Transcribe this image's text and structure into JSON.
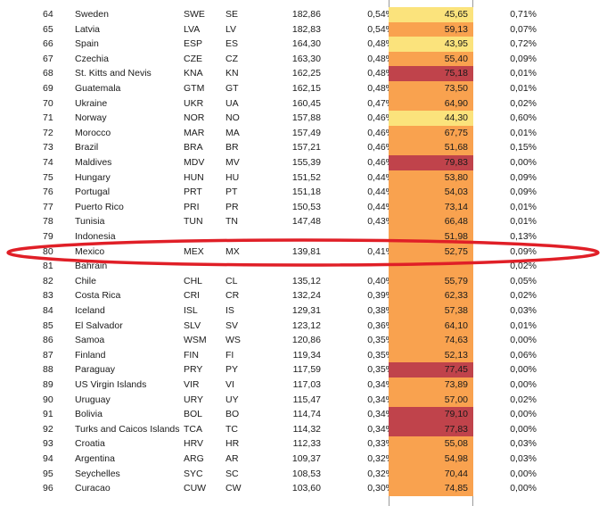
{
  "colors": {
    "yellow": "#fbe37c",
    "orange": "#f9a24f",
    "amber": "#f3914a",
    "red": "#c0434b",
    "ring": "#e01f27"
  },
  "rows": [
    {
      "rank": "64",
      "country": "Sweden",
      "iso3": "SWE",
      "iso2": "SE",
      "value": "182,86",
      "share": "0,54%",
      "score": "45,65",
      "pct": "0,71%",
      "fill": "yellow"
    },
    {
      "rank": "65",
      "country": "Latvia",
      "iso3": "LVA",
      "iso2": "LV",
      "value": "182,83",
      "share": "0,54%",
      "score": "59,13",
      "pct": "0,07%",
      "fill": "orange"
    },
    {
      "rank": "66",
      "country": "Spain",
      "iso3": "ESP",
      "iso2": "ES",
      "value": "164,30",
      "share": "0,48%",
      "score": "43,95",
      "pct": "0,72%",
      "fill": "yellow"
    },
    {
      "rank": "67",
      "country": "Czechia",
      "iso3": "CZE",
      "iso2": "CZ",
      "value": "163,30",
      "share": "0,48%",
      "score": "55,40",
      "pct": "0,09%",
      "fill": "orange"
    },
    {
      "rank": "68",
      "country": "St. Kitts and Nevis",
      "iso3": "KNA",
      "iso2": "KN",
      "value": "162,25",
      "share": "0,48%",
      "score": "75,18",
      "pct": "0,01%",
      "fill": "red"
    },
    {
      "rank": "69",
      "country": "Guatemala",
      "iso3": "GTM",
      "iso2": "GT",
      "value": "162,15",
      "share": "0,48%",
      "score": "73,50",
      "pct": "0,01%",
      "fill": "orange"
    },
    {
      "rank": "70",
      "country": "Ukraine",
      "iso3": "UKR",
      "iso2": "UA",
      "value": "160,45",
      "share": "0,47%",
      "score": "64,90",
      "pct": "0,02%",
      "fill": "orange"
    },
    {
      "rank": "71",
      "country": "Norway",
      "iso3": "NOR",
      "iso2": "NO",
      "value": "157,88",
      "share": "0,46%",
      "score": "44,30",
      "pct": "0,60%",
      "fill": "yellow"
    },
    {
      "rank": "72",
      "country": "Morocco",
      "iso3": "MAR",
      "iso2": "MA",
      "value": "157,49",
      "share": "0,46%",
      "score": "67,75",
      "pct": "0,01%",
      "fill": "orange"
    },
    {
      "rank": "73",
      "country": "Brazil",
      "iso3": "BRA",
      "iso2": "BR",
      "value": "157,21",
      "share": "0,46%",
      "score": "51,68",
      "pct": "0,15%",
      "fill": "orange"
    },
    {
      "rank": "74",
      "country": "Maldives",
      "iso3": "MDV",
      "iso2": "MV",
      "value": "155,39",
      "share": "0,46%",
      "score": "79,83",
      "pct": "0,00%",
      "fill": "red"
    },
    {
      "rank": "75",
      "country": "Hungary",
      "iso3": "HUN",
      "iso2": "HU",
      "value": "151,52",
      "share": "0,44%",
      "score": "53,80",
      "pct": "0,09%",
      "fill": "orange"
    },
    {
      "rank": "76",
      "country": "Portugal",
      "iso3": "PRT",
      "iso2": "PT",
      "value": "151,18",
      "share": "0,44%",
      "score": "54,03",
      "pct": "0,09%",
      "fill": "orange"
    },
    {
      "rank": "77",
      "country": "Puerto Rico",
      "iso3": "PRI",
      "iso2": "PR",
      "value": "150,53",
      "share": "0,44%",
      "score": "73,14",
      "pct": "0,01%",
      "fill": "orange"
    },
    {
      "rank": "78",
      "country": "Tunisia",
      "iso3": "TUN",
      "iso2": "TN",
      "value": "147,48",
      "share": "0,43%",
      "score": "66,48",
      "pct": "0,01%",
      "fill": "orange"
    },
    {
      "rank": "79",
      "country": "Indonesia",
      "iso3": "",
      "iso2": "",
      "value": "",
      "share": "",
      "score": "51,98",
      "pct": "0,13%",
      "fill": "orange"
    },
    {
      "rank": "80",
      "country": "Mexico",
      "iso3": "MEX",
      "iso2": "MX",
      "value": "139,81",
      "share": "0,41%",
      "score": "52,75",
      "pct": "0,09%",
      "fill": "orange"
    },
    {
      "rank": "81",
      "country": "Bahrain",
      "iso3": "",
      "iso2": "",
      "value": "",
      "share": "",
      "score": "",
      "pct": "0,02%",
      "fill": "orange"
    },
    {
      "rank": "82",
      "country": "Chile",
      "iso3": "CHL",
      "iso2": "CL",
      "value": "135,12",
      "share": "0,40%",
      "score": "55,79",
      "pct": "0,05%",
      "fill": "orange"
    },
    {
      "rank": "83",
      "country": "Costa Rica",
      "iso3": "CRI",
      "iso2": "CR",
      "value": "132,24",
      "share": "0,39%",
      "score": "62,33",
      "pct": "0,02%",
      "fill": "orange"
    },
    {
      "rank": "84",
      "country": "Iceland",
      "iso3": "ISL",
      "iso2": "IS",
      "value": "129,31",
      "share": "0,38%",
      "score": "57,38",
      "pct": "0,03%",
      "fill": "orange"
    },
    {
      "rank": "85",
      "country": "El Salvador",
      "iso3": "SLV",
      "iso2": "SV",
      "value": "123,12",
      "share": "0,36%",
      "score": "64,10",
      "pct": "0,01%",
      "fill": "orange"
    },
    {
      "rank": "86",
      "country": "Samoa",
      "iso3": "WSM",
      "iso2": "WS",
      "value": "120,86",
      "share": "0,35%",
      "score": "74,63",
      "pct": "0,00%",
      "fill": "orange"
    },
    {
      "rank": "87",
      "country": "Finland",
      "iso3": "FIN",
      "iso2": "FI",
      "value": "119,34",
      "share": "0,35%",
      "score": "52,13",
      "pct": "0,06%",
      "fill": "orange"
    },
    {
      "rank": "88",
      "country": "Paraguay",
      "iso3": "PRY",
      "iso2": "PY",
      "value": "117,59",
      "share": "0,35%",
      "score": "77,45",
      "pct": "0,00%",
      "fill": "red"
    },
    {
      "rank": "89",
      "country": "US Virgin Islands",
      "iso3": "VIR",
      "iso2": "VI",
      "value": "117,03",
      "share": "0,34%",
      "score": "73,89",
      "pct": "0,00%",
      "fill": "orange"
    },
    {
      "rank": "90",
      "country": "Uruguay",
      "iso3": "URY",
      "iso2": "UY",
      "value": "115,47",
      "share": "0,34%",
      "score": "57,00",
      "pct": "0,02%",
      "fill": "orange"
    },
    {
      "rank": "91",
      "country": "Bolivia",
      "iso3": "BOL",
      "iso2": "BO",
      "value": "114,74",
      "share": "0,34%",
      "score": "79,10",
      "pct": "0,00%",
      "fill": "red"
    },
    {
      "rank": "92",
      "country": "Turks and Caicos Islands",
      "iso3": "TCA",
      "iso2": "TC",
      "value": "114,32",
      "share": "0,34%",
      "score": "77,83",
      "pct": "0,00%",
      "fill": "red"
    },
    {
      "rank": "93",
      "country": "Croatia",
      "iso3": "HRV",
      "iso2": "HR",
      "value": "112,33",
      "share": "0,33%",
      "score": "55,08",
      "pct": "0,03%",
      "fill": "orange"
    },
    {
      "rank": "94",
      "country": "Argentina",
      "iso3": "ARG",
      "iso2": "AR",
      "value": "109,37",
      "share": "0,32%",
      "score": "54,98",
      "pct": "0,03%",
      "fill": "orange"
    },
    {
      "rank": "95",
      "country": "Seychelles",
      "iso3": "SYC",
      "iso2": "SC",
      "value": "108,53",
      "share": "0,32%",
      "score": "70,44",
      "pct": "0,00%",
      "fill": "orange"
    },
    {
      "rank": "96",
      "country": "Curacao",
      "iso3": "CUW",
      "iso2": "CW",
      "value": "103,60",
      "share": "0,30%",
      "score": "74,85",
      "pct": "0,00%",
      "fill": "orange"
    }
  ]
}
